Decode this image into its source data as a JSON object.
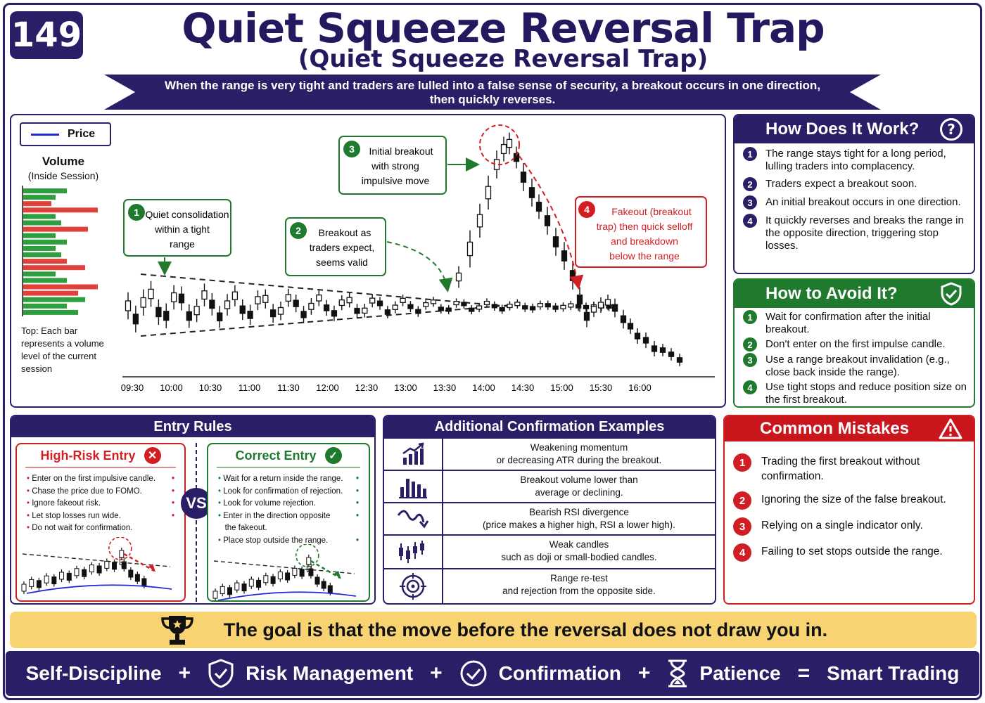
{
  "header": {
    "badge": "149",
    "title": "Quiet Squeeze Reversal Trap",
    "subtitle": "(Quiet Squeeze Reversal Trap)",
    "ribbon_line1": "When the range is very tight and traders are lulled into a false sense of security, a breakout occurs in one direction,",
    "ribbon_line2": "then quickly reverses."
  },
  "chart": {
    "legend_label": "Price",
    "volume_title": "Volume",
    "volume_subtitle": "(Inside Session)",
    "volume_note": "Top: Each bar represents a volume level of the current session",
    "time_labels": [
      "09:30",
      "10:00",
      "10:30",
      "11:00",
      "11:30",
      "12:00",
      "12:30",
      "13:00",
      "13:30",
      "14:00",
      "14:30",
      "15:00",
      "15:30",
      "16:00"
    ],
    "callouts": [
      {
        "num": "1",
        "lines": [
          "Quiet consolidation",
          "within a tight",
          "range"
        ]
      },
      {
        "num": "2",
        "lines": [
          "Breakout as",
          "traders expect,",
          "seems valid"
        ]
      },
      {
        "num": "3",
        "lines": [
          "Initial breakout",
          "with strong",
          "impulsive move"
        ]
      },
      {
        "num": "4",
        "lines": [
          "Fakeout (breakout",
          "trap) then quick selloff",
          "and breakdown",
          "below the range"
        ]
      }
    ],
    "colors": {
      "up": "#2e9e3e",
      "down": "#e0413a",
      "navy": "#2a1f66",
      "price_line": "#1e2bd6"
    }
  },
  "how_it_works": {
    "title": "How Does It Work?",
    "icon": "question-icon",
    "items": [
      "The range stays tight for a long period, lulling traders into complacency.",
      "Traders expect a breakout soon.",
      "An initial breakout occurs in one direction.",
      "It quickly reverses and breaks the range in the opposite direction, triggering stop losses."
    ]
  },
  "how_to_avoid": {
    "title": "How to Avoid It?",
    "icon": "shield-check-icon",
    "items": [
      "Wait for confirmation after the initial breakout.",
      "Don't enter on the first impulse candle.",
      "Use a range breakout invalidation (e.g., close back inside the range).",
      "Use tight stops and reduce position size on the first breakout."
    ]
  },
  "entry_rules": {
    "title": "Entry Rules",
    "vs": "VS",
    "high_risk": {
      "title": "High-Risk Entry",
      "items": [
        "Enter on the first impulsive candle.",
        "Chase the price due to FOMO.",
        "Ignore fakeout risk.",
        "Let stop losses run wide.",
        "Do not wait for confirmation."
      ]
    },
    "correct": {
      "title": "Correct Entry",
      "items": [
        "Wait for a return inside the range.",
        "Look for confirmation of rejection.",
        "Look for volume rejection.",
        "Enter in the direction opposite",
        "the fakeout.",
        "Place stop outside the range."
      ]
    }
  },
  "confirmation": {
    "title": "Additional Confirmation Examples",
    "rows": [
      {
        "icon": "rising-bars-icon",
        "line1": "Weakening momentum",
        "line2": "or decreasing ATR during the breakout."
      },
      {
        "icon": "volume-bars-icon",
        "line1": "Breakout volume lower than",
        "line2": "average or declining."
      },
      {
        "icon": "wave-arrow-icon",
        "line1": "Bearish RSI divergence",
        "line2": "(price makes a higher high, RSI a lower high)."
      },
      {
        "icon": "candles-icon",
        "line1": "Weak candles",
        "line2": "such as doji or small-bodied candles."
      },
      {
        "icon": "target-icon",
        "line1": "Range re-test",
        "line2": "and rejection from the opposite side."
      }
    ]
  },
  "mistakes": {
    "title": "Common Mistakes",
    "icon": "warning-icon",
    "items": [
      "Trading the first breakout without confirmation.",
      "Ignoring the size of the false breakout.",
      "Relying on a single indicator only.",
      "Failing to set stops outside the range."
    ]
  },
  "goal": {
    "text": "The goal is that the move before the reversal does not draw you in.",
    "icon": "trophy-icon"
  },
  "footer": {
    "t1": "Self-Discipline",
    "t2": "Risk Management",
    "t3": "Confirmation",
    "t4": "Patience",
    "t5": "Smart Trading",
    "plus": "+",
    "equals": "="
  }
}
